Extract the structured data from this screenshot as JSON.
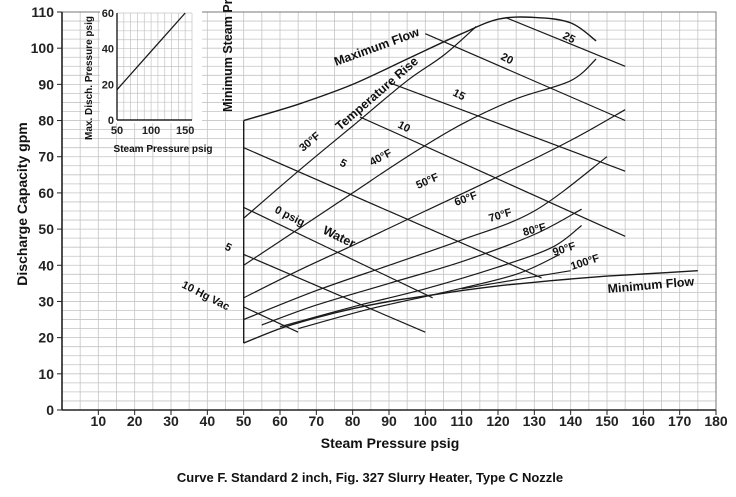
{
  "caption": "Curve F.  Standard 2 inch, Fig. 327 Slurry Heater, Type C Nozzle",
  "chart_data": {
    "type": "line",
    "xlabel": "Steam Pressure psig",
    "ylabel": "Discharge Capacity gpm",
    "xlim": [
      0,
      180
    ],
    "ylim": [
      0,
      110
    ],
    "x_ticks": [
      "10",
      "20",
      "30",
      "40",
      "50",
      "60",
      "70",
      "80",
      "90",
      "100",
      "110",
      "120",
      "130",
      "140",
      "150",
      "160",
      "170",
      "180"
    ],
    "y_ticks": [
      "0",
      "10",
      "20",
      "30",
      "40",
      "50",
      "60",
      "70",
      "80",
      "90",
      "100",
      "110"
    ],
    "grid": true,
    "boundaries": [
      {
        "name": "Maximum Flow",
        "x": [
          50,
          65,
          80,
          95,
          110,
          120,
          130,
          140,
          147
        ],
        "y": [
          80,
          84.5,
          90,
          97,
          104,
          108,
          108.5,
          107,
          102
        ]
      },
      {
        "name": "Minimum Flow",
        "x": [
          50,
          60,
          70,
          80,
          90,
          100,
          110,
          120,
          130,
          140,
          150,
          160,
          175
        ],
        "y": [
          18.5,
          22.5,
          25.5,
          28,
          30,
          31.5,
          33,
          34.3,
          35.3,
          36.2,
          37,
          37.6,
          38.5
        ]
      },
      {
        "name": "Minimum Steam Pressure",
        "x": [
          50,
          50
        ],
        "y": [
          18.5,
          80
        ]
      }
    ],
    "temperature_rise_curves": [
      {
        "label": "30°F",
        "x": [
          50,
          65,
          80,
          95,
          105,
          114
        ],
        "y": [
          53,
          66,
          78.5,
          91,
          98,
          106
        ]
      },
      {
        "label": "40°F",
        "x": [
          50,
          65,
          80,
          95,
          110,
          125,
          140,
          147
        ],
        "y": [
          40,
          50,
          60,
          70,
          79,
          86,
          91,
          97
        ]
      },
      {
        "label": "50°F",
        "x": [
          50,
          65,
          80,
          100,
          120,
          140,
          155
        ],
        "y": [
          31,
          38.5,
          45.5,
          55,
          64.5,
          74.5,
          83
        ]
      },
      {
        "label": "60°F",
        "x": [
          50,
          70,
          90,
          110,
          130,
          150
        ],
        "y": [
          25,
          33,
          40,
          47,
          55,
          70
        ]
      },
      {
        "label": "70°F",
        "x": [
          55,
          70,
          90,
          110,
          130,
          143
        ],
        "y": [
          23.5,
          29,
          35,
          41,
          48.5,
          55.5
        ]
      },
      {
        "label": "80°F",
        "x": [
          60,
          80,
          100,
          120,
          135,
          143
        ],
        "y": [
          23,
          28.5,
          33.5,
          39.5,
          45,
          51
        ]
      },
      {
        "label": "90°F",
        "x": [
          65,
          85,
          105,
          125,
          137
        ],
        "y": [
          22.5,
          28,
          32.5,
          37.5,
          43
        ]
      },
      {
        "label": "100°F",
        "x": [
          110,
          125,
          140
        ],
        "y": [
          33.5,
          36,
          38.5
        ]
      }
    ],
    "discharge_pressure_lines": [
      {
        "label": "10 Hg Vac",
        "x": [
          50,
          65
        ],
        "y": [
          28.5,
          21.5
        ]
      },
      {
        "label": "0 psig",
        "x": [
          50,
          102
        ],
        "y": [
          56,
          31
        ]
      },
      {
        "label": "5",
        "x": [
          50,
          132
        ],
        "y": [
          72.5,
          36.5
        ]
      },
      {
        "label": "5",
        "x": [
          50,
          100
        ],
        "y": [
          43,
          21.5
        ]
      },
      {
        "label": "10",
        "x": [
          82,
          155
        ],
        "y": [
          81,
          48
        ]
      },
      {
        "label": "15",
        "x": [
          90,
          155
        ],
        "y": [
          90.5,
          66
        ]
      },
      {
        "label": "20",
        "x": [
          100,
          155
        ],
        "y": [
          104,
          80
        ]
      },
      {
        "label": "25",
        "x": [
          122,
          155
        ],
        "y": [
          108.5,
          95
        ]
      }
    ],
    "curve_labels": [
      "Maximum Flow",
      "Temperature Rise",
      "Water",
      "Minimum Flow",
      "Minimum Steam Pressure"
    ],
    "inset": {
      "type": "line",
      "xlabel": "Steam Pressure psig",
      "ylabel": "Max. Disch. Pressure psig",
      "x_ticks": [
        "50",
        "100",
        "150"
      ],
      "y_ticks": [
        "0",
        "20",
        "40",
        "60"
      ],
      "xlim": [
        50,
        160
      ],
      "ylim": [
        0,
        60
      ],
      "x": [
        50,
        150
      ],
      "y": [
        17,
        60
      ]
    }
  }
}
